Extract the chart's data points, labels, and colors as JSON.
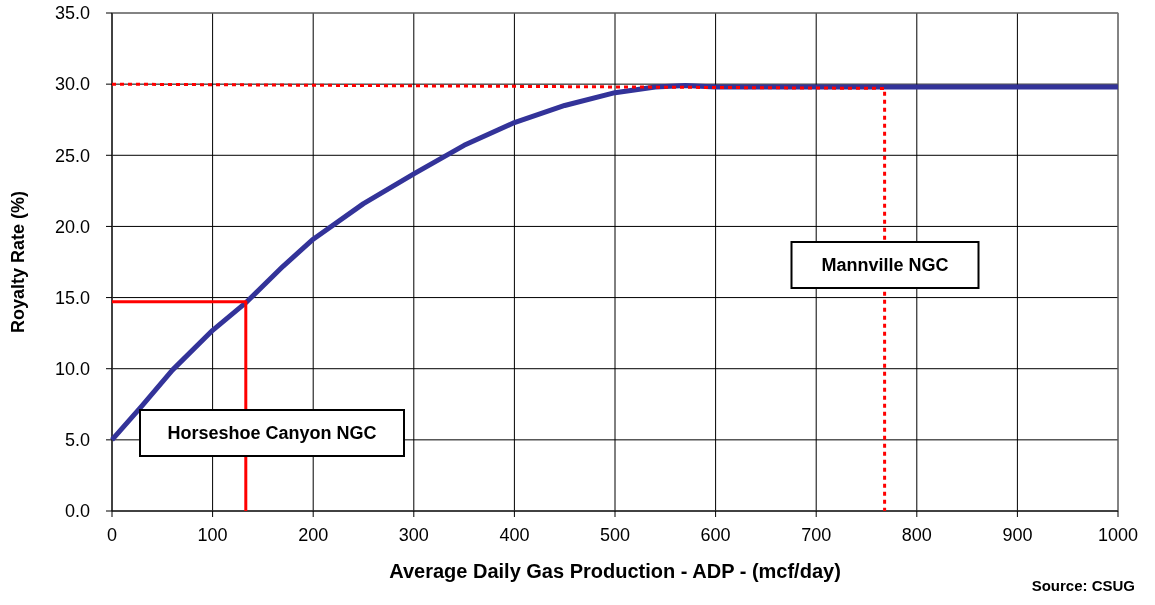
{
  "chart_data": {
    "type": "line",
    "xlabel": "Average Daily Gas Production - ADP - (mcf/day)",
    "ylabel": "Royalty Rate (%)",
    "xlim": [
      0,
      1000
    ],
    "xticks": [
      0,
      100,
      200,
      300,
      400,
      500,
      600,
      700,
      800,
      900,
      1000
    ],
    "ylim": [
      0,
      35
    ],
    "yticks": [
      {
        "value": 0,
        "label": "0.0"
      },
      {
        "value": 5,
        "label": "5.0"
      },
      {
        "value": 10,
        "label": "10.0"
      },
      {
        "value": 15,
        "label": "15.0"
      },
      {
        "value": 20,
        "label": "20.0"
      },
      {
        "value": 25,
        "label": "25.0"
      },
      {
        "value": 30,
        "label": "30.0"
      },
      {
        "value": 35,
        "label": "35.0"
      }
    ],
    "grid": true,
    "series": [
      {
        "color": "#333399",
        "line_style": "solid",
        "x": [
          0,
          30,
          60,
          100,
          134,
          170,
          200,
          250,
          300,
          350,
          400,
          450,
          500,
          540,
          570,
          600,
          700,
          800,
          900,
          1000
        ],
        "values": [
          5.0,
          7.4,
          9.9,
          12.7,
          14.7,
          17.2,
          19.1,
          21.6,
          23.7,
          25.7,
          27.3,
          28.5,
          29.4,
          29.8,
          29.9,
          29.8,
          29.8,
          29.8,
          29.8,
          29.8
        ]
      },
      {
        "color": "#ff0000",
        "line_style": "solid",
        "x": [
          0,
          133,
          133
        ],
        "values": [
          14.7,
          14.7,
          0
        ]
      },
      {
        "color": "#ff0000",
        "line_style": "dotted",
        "x": [
          0,
          768,
          768
        ],
        "values": [
          30.0,
          29.7,
          0
        ]
      }
    ],
    "annotations": [
      "Horseshoe Canyon NGC",
      "Mannville NGC",
      "Source: CSUG"
    ]
  }
}
